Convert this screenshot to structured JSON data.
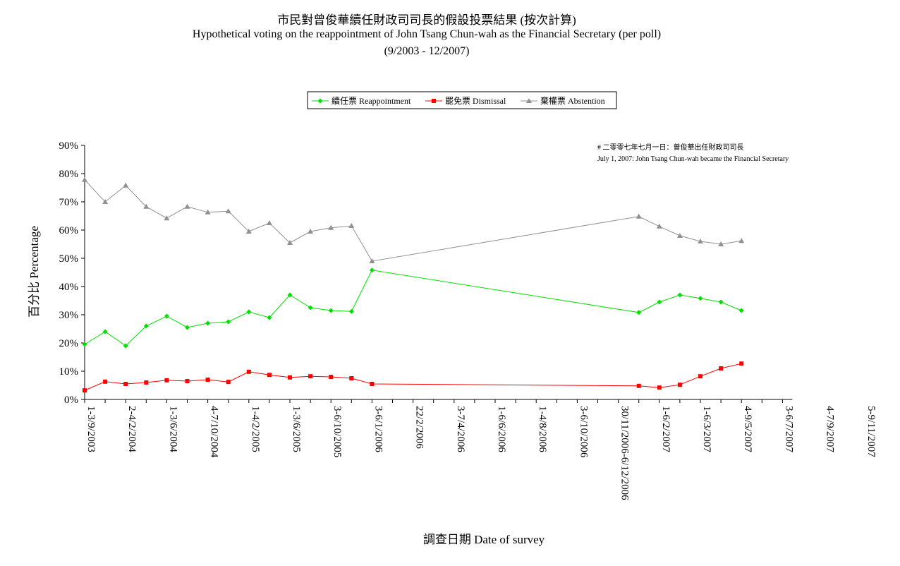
{
  "chart_data": {
    "type": "line",
    "title": "市民對曾俊華續任財政司司長的假設投票結果 (按次計算)",
    "subtitle": "Hypothetical voting on the reappointment of John Tsang Chun-wah as the Financial Secretary (per poll)",
    "period": "(9/2003 - 12/2007)",
    "xlabel": "調查日期 Date of survey",
    "ylabel": "百分比 Percentage",
    "ylim": [
      0,
      90
    ],
    "yticks": [
      "0%",
      "10%",
      "20%",
      "30%",
      "40%",
      "50%",
      "60%",
      "70%",
      "80%",
      "90%"
    ],
    "x_tick_labels": [
      "1-3/9/2003",
      "2-4/2/2004",
      "1-3/6/2004",
      "4-7/10/2004",
      "1-4/2/2005",
      "1-3/6/2005",
      "3-6/10/2005",
      "3-6/1/2006",
      "22/2/2006",
      "3-7/4/2006",
      "1-6/6/2006",
      "1-4/8/2006",
      "3-6/10/2006",
      "30/11/2006-6/12/2006",
      "1-6/2/2007",
      "1-6/3/2007",
      "4-9/5/2007",
      "3-6/7/2007",
      "4-7/9/2007",
      "5-9/11/2007"
    ],
    "grid": false,
    "legend_position": "top-center",
    "annotation": {
      "zh": "# 二零零七年七月一日：曾俊華出任財政司司長",
      "en": "July 1, 2007: John Tsang Chun-wah became the Financial Secretary"
    },
    "x_positions": [
      0,
      1,
      2,
      3,
      4,
      5,
      6,
      7,
      8,
      9,
      10,
      11,
      12,
      13,
      14,
      16,
      18,
      19,
      20,
      21,
      22,
      23,
      24,
      25,
      26,
      27,
      28,
      29,
      30,
      31,
      32,
      33,
      34
    ],
    "series": [
      {
        "name": "續任票 Reappointment",
        "color": "#00e000",
        "marker": "diamond",
        "values": [
          19.5,
          24,
          19,
          26,
          29.5,
          25.5,
          27,
          27.5,
          31,
          29,
          37,
          32.5,
          31.5,
          31.2,
          45.8,
          30.8,
          34.5,
          37,
          35.8,
          34.5,
          31.5
        ]
      },
      {
        "name": "罷免票 Dismissal",
        "color": "#ff0000",
        "marker": "square",
        "values": [
          3.2,
          6.3,
          5.5,
          6,
          6.8,
          6.5,
          7,
          6.2,
          9.8,
          8.7,
          7.8,
          8.2,
          8,
          7.5,
          5.5,
          4.8,
          4.2,
          5.2,
          8.2,
          11,
          12.7
        ]
      },
      {
        "name": "棄權票 Abstention",
        "color": "#909090",
        "marker": "triangle",
        "values": [
          77.8,
          70,
          75.8,
          68.3,
          64.2,
          68.3,
          66.3,
          66.7,
          59.5,
          62.5,
          55.5,
          59.5,
          60.8,
          61.5,
          49,
          64.8,
          61.3,
          58,
          56,
          55,
          56.2
        ]
      }
    ],
    "poll_indices": [
      0,
      1,
      2,
      3,
      4,
      5,
      6,
      7,
      8,
      9,
      10,
      11,
      12,
      13,
      14,
      27,
      28,
      29,
      30,
      31,
      32
    ]
  }
}
